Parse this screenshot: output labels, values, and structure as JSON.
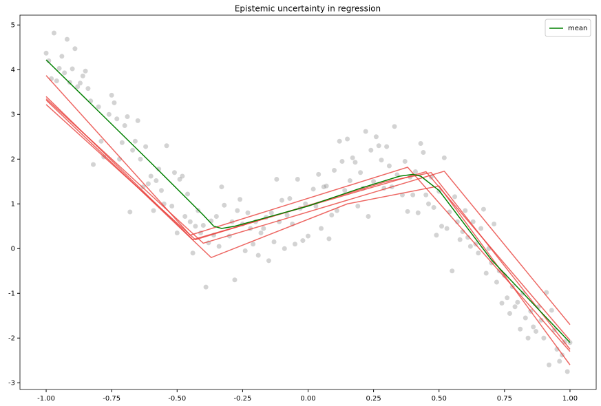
{
  "chart_data": {
    "type": "line",
    "title": "Epistemic uncertainty in regression",
    "xlim": [
      -1.1,
      1.1
    ],
    "ylim": [
      -3.15,
      5.22
    ],
    "xticks": [
      {
        "value": -1,
        "label": "-1.00"
      },
      {
        "value": -0.75,
        "label": "-0.75"
      },
      {
        "value": -0.5,
        "label": "-0.50"
      },
      {
        "value": -0.25,
        "label": "-0.25"
      },
      {
        "value": 0,
        "label": "0.00"
      },
      {
        "value": 0.25,
        "label": "0.25"
      },
      {
        "value": 0.5,
        "label": "0.50"
      },
      {
        "value": 0.75,
        "label": "0.75"
      },
      {
        "value": 1,
        "label": "1.00"
      }
    ],
    "yticks": [
      -3,
      -2,
      -1,
      0,
      1,
      2,
      3,
      4,
      5
    ],
    "legend": "upper right",
    "scatter": {
      "color": "#808080",
      "x": [
        -1.0,
        -0.99,
        -0.98,
        -0.97,
        -0.96,
        -0.95,
        -0.94,
        -0.93,
        -0.92,
        -0.91,
        -0.9,
        -0.89,
        -0.88,
        -0.87,
        -0.86,
        -0.85,
        -0.84,
        -0.83,
        -0.82,
        -0.8,
        -0.79,
        -0.78,
        -0.76,
        -0.75,
        -0.74,
        -0.73,
        -0.72,
        -0.71,
        -0.7,
        -0.69,
        -0.68,
        -0.67,
        -0.66,
        -0.65,
        -0.64,
        -0.63,
        -0.62,
        -0.61,
        -0.6,
        -0.59,
        -0.58,
        -0.57,
        -0.56,
        -0.55,
        -0.54,
        -0.52,
        -0.51,
        -0.5,
        -0.49,
        -0.48,
        -0.47,
        -0.46,
        -0.45,
        -0.44,
        -0.43,
        -0.42,
        -0.41,
        -0.4,
        -0.39,
        -0.38,
        -0.37,
        -0.36,
        -0.35,
        -0.34,
        -0.33,
        -0.32,
        -0.3,
        -0.29,
        -0.28,
        -0.27,
        -0.26,
        -0.25,
        -0.24,
        -0.23,
        -0.22,
        -0.21,
        -0.2,
        -0.19,
        -0.18,
        -0.17,
        -0.16,
        -0.15,
        -0.14,
        -0.13,
        -0.12,
        -0.11,
        -0.1,
        -0.09,
        -0.08,
        -0.07,
        -0.06,
        -0.05,
        -0.04,
        -0.03,
        -0.02,
        -0.01,
        0.0,
        0.02,
        0.03,
        0.04,
        0.05,
        0.06,
        0.07,
        0.08,
        0.09,
        0.1,
        0.11,
        0.12,
        0.13,
        0.14,
        0.15,
        0.16,
        0.17,
        0.18,
        0.19,
        0.2,
        0.21,
        0.22,
        0.23,
        0.24,
        0.25,
        0.26,
        0.27,
        0.28,
        0.29,
        0.3,
        0.31,
        0.32,
        0.33,
        0.34,
        0.36,
        0.37,
        0.38,
        0.39,
        0.4,
        0.41,
        0.42,
        0.43,
        0.44,
        0.45,
        0.46,
        0.47,
        0.48,
        0.49,
        0.5,
        0.51,
        0.52,
        0.53,
        0.54,
        0.55,
        0.56,
        0.57,
        0.58,
        0.59,
        0.6,
        0.61,
        0.62,
        0.63,
        0.64,
        0.65,
        0.66,
        0.67,
        0.68,
        0.69,
        0.7,
        0.71,
        0.72,
        0.73,
        0.74,
        0.75,
        0.76,
        0.77,
        0.78,
        0.79,
        0.8,
        0.81,
        0.82,
        0.83,
        0.84,
        0.85,
        0.86,
        0.87,
        0.88,
        0.89,
        0.9,
        0.91,
        0.92,
        0.93,
        0.94,
        0.95,
        0.96,
        0.97,
        0.98,
        0.99,
        1.0
      ],
      "values": [
        4.37,
        4.2,
        3.8,
        4.82,
        3.75,
        4.03,
        4.3,
        3.93,
        4.68,
        3.72,
        4.02,
        4.47,
        3.62,
        3.7,
        3.86,
        3.97,
        3.58,
        3.3,
        1.88,
        3.17,
        2.4,
        2.05,
        3.0,
        3.43,
        3.26,
        2.9,
        2.0,
        2.37,
        2.75,
        2.95,
        0.82,
        2.2,
        2.4,
        2.86,
        2.0,
        1.38,
        2.28,
        1.45,
        1.62,
        0.85,
        1.52,
        1.78,
        1.3,
        1.0,
        2.3,
        0.95,
        1.7,
        0.35,
        1.55,
        1.62,
        0.72,
        1.22,
        0.6,
        -0.1,
        0.5,
        0.85,
        0.35,
        0.52,
        -0.86,
        0.13,
        0.62,
        0.3,
        0.72,
        0.05,
        1.38,
        0.97,
        0.28,
        0.6,
        -0.7,
        0.85,
        1.1,
        0.55,
        -0.05,
        0.8,
        0.45,
        0.1,
        0.6,
        -0.15,
        0.35,
        0.45,
        0.7,
        -0.27,
        0.8,
        0.15,
        1.55,
        0.6,
        1.08,
        0.0,
        0.75,
        1.12,
        0.55,
        0.1,
        1.55,
        0.9,
        0.18,
        1.0,
        0.28,
        1.33,
        0.95,
        1.66,
        0.45,
        1.38,
        1.4,
        0.22,
        0.75,
        1.75,
        0.85,
        2.4,
        1.95,
        1.3,
        2.45,
        1.52,
        2.03,
        1.93,
        0.95,
        1.7,
        1.35,
        2.62,
        0.72,
        2.2,
        1.5,
        2.5,
        2.3,
        1.98,
        1.35,
        2.28,
        1.85,
        1.38,
        2.73,
        1.65,
        1.2,
        1.95,
        0.83,
        1.6,
        1.2,
        1.72,
        0.8,
        2.35,
        2.15,
        1.2,
        1.0,
        1.6,
        0.92,
        0.3,
        1.28,
        0.5,
        2.03,
        0.45,
        0.82,
        -0.5,
        1.16,
        0.6,
        0.2,
        0.38,
        0.85,
        0.25,
        0.05,
        0.6,
        0.1,
        -0.1,
        0.45,
        0.88,
        -0.55,
        0.0,
        -0.32,
        0.55,
        -0.75,
        -0.5,
        -1.22,
        -0.6,
        -1.1,
        -1.45,
        -0.85,
        -1.3,
        -1.2,
        -1.8,
        -1.0,
        -1.55,
        -2.0,
        -1.4,
        -1.75,
        -1.85,
        -1.3,
        -1.6,
        -2.0,
        -0.98,
        -2.6,
        -1.38,
        -1.82,
        -2.25,
        -2.52,
        -2.38,
        -2.08,
        -2.75,
        -2.1
      ]
    },
    "series": [
      {
        "color": "#e8413c",
        "x": [
          -1,
          -0.45,
          0.38,
          1
        ],
        "values": [
          3.87,
          0.3,
          1.82,
          -2.3
        ]
      },
      {
        "color": "#e8413c",
        "x": [
          -1,
          -0.44,
          0.45,
          1
        ],
        "values": [
          3.4,
          0.2,
          1.72,
          -2.05
        ]
      },
      {
        "color": "#e8413c",
        "x": [
          -1,
          -0.4,
          0.52,
          1
        ],
        "values": [
          3.35,
          0.12,
          1.73,
          -1.7
        ]
      },
      {
        "color": "#e8413c",
        "x": [
          -1,
          -0.37,
          0.15,
          0.5,
          1
        ],
        "values": [
          3.32,
          -0.2,
          1.0,
          1.4,
          -2.6
        ]
      },
      {
        "color": "#e8413c",
        "x": [
          -1,
          -0.43,
          0.3,
          0.47,
          1
        ],
        "values": [
          3.22,
          0.2,
          1.5,
          1.7,
          -2.25
        ]
      },
      {
        "name": "mean",
        "color": "#008000",
        "x": [
          -1,
          -0.6,
          -0.4,
          -0.36,
          -0.33,
          -0.28,
          0,
          0.2,
          0.35,
          0.4,
          0.43,
          0.5,
          0.7,
          1
        ],
        "values": [
          4.22,
          1.92,
          0.75,
          0.5,
          0.45,
          0.5,
          0.95,
          1.35,
          1.62,
          1.66,
          1.62,
          1.3,
          -0.25,
          -2.1
        ]
      }
    ]
  }
}
